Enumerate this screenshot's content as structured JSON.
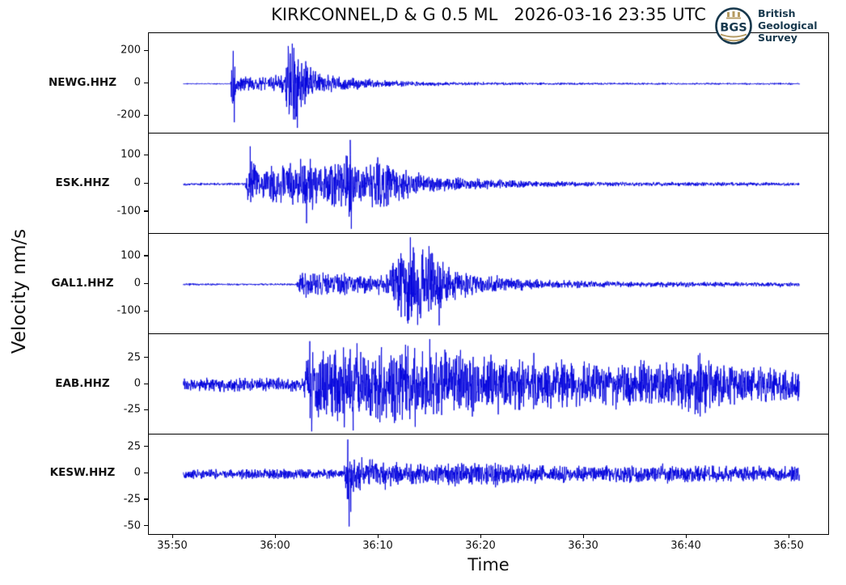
{
  "title": "KIRKCONNEL,D & G 0.5 ML   2026-03-16 23:35 UTC",
  "xlabel": "Time",
  "ylabel": "Velocity nm/s",
  "logo": {
    "abbr": "BGS",
    "line1": "British",
    "line2": "Geological",
    "line3": "Survey",
    "navy": "#17384d",
    "gold": "#b49a62"
  },
  "trace_color": "#0000dd",
  "chart_data": {
    "type": "line",
    "subtype": "seismogram-multipanel",
    "title": "KIRKCONNEL,D & G 0.5 ML   2026-03-16 23:35 UTC",
    "xlabel": "Time",
    "ylabel": "Velocity nm/s",
    "grid": false,
    "legend": false,
    "x_tick_labels": [
      "35:50",
      "36:00",
      "36:10",
      "36:20",
      "36:30",
      "36:40",
      "36:50"
    ],
    "x_tick_seconds": [
      0,
      10,
      20,
      30,
      40,
      50,
      60
    ],
    "trace_span_seconds": [
      1,
      61
    ],
    "stations": [
      {
        "label": "NEWG.HHZ",
        "y_ticks": [
          200,
          0,
          -200
        ],
        "ylim": [
          -310,
          310
        ],
        "peak": 250,
        "seed": 11,
        "envelope": [
          [
            0,
            4
          ],
          [
            5.6,
            4
          ],
          [
            5.8,
            200
          ],
          [
            6.3,
            55
          ],
          [
            8,
            42
          ],
          [
            9.5,
            48
          ],
          [
            10.8,
            85
          ],
          [
            11.3,
            250
          ],
          [
            12.4,
            215
          ],
          [
            13.5,
            95
          ],
          [
            15,
            58
          ],
          [
            18,
            36
          ],
          [
            22,
            19
          ],
          [
            28,
            11
          ],
          [
            36,
            8
          ],
          [
            50,
            6
          ],
          [
            61,
            6
          ]
        ],
        "spikes": [
          [
            5.85,
            205
          ],
          [
            5.95,
            -240
          ],
          [
            11.2,
            235
          ],
          [
            11.6,
            250
          ],
          [
            12.1,
            -275
          ]
        ]
      },
      {
        "label": "ESK.HHZ",
        "y_ticks": [
          100,
          0,
          -100
        ],
        "ylim": [
          -178,
          178
        ],
        "peak": 160,
        "seed": 22,
        "envelope": [
          [
            0,
            5
          ],
          [
            7,
            5
          ],
          [
            7.5,
            130
          ],
          [
            8.2,
            48
          ],
          [
            9,
            58
          ],
          [
            10,
            72
          ],
          [
            12,
            82
          ],
          [
            13.5,
            110
          ],
          [
            14.5,
            72
          ],
          [
            16,
            92
          ],
          [
            17.2,
            155
          ],
          [
            17.6,
            65
          ],
          [
            19,
            82
          ],
          [
            20.5,
            108
          ],
          [
            21.5,
            62
          ],
          [
            23,
            52
          ],
          [
            26,
            32
          ],
          [
            30,
            19
          ],
          [
            36,
            11
          ],
          [
            45,
            8
          ],
          [
            61,
            7
          ]
        ],
        "spikes": [
          [
            7.5,
            135
          ],
          [
            13.0,
            -140
          ],
          [
            17.25,
            158
          ],
          [
            17.35,
            -160
          ]
        ]
      },
      {
        "label": "GAL1.HHZ",
        "y_ticks": [
          100,
          0,
          -100
        ],
        "ylim": [
          -182,
          182
        ],
        "peak": 170,
        "seed": 33,
        "envelope": [
          [
            0,
            4
          ],
          [
            12,
            4
          ],
          [
            12.6,
            62
          ],
          [
            13.5,
            42
          ],
          [
            15,
            46
          ],
          [
            17,
            40
          ],
          [
            19,
            35
          ],
          [
            21,
            50
          ],
          [
            22,
            118
          ],
          [
            23.2,
            168
          ],
          [
            24.5,
            128
          ],
          [
            25.5,
            140
          ],
          [
            26.5,
            82
          ],
          [
            28,
            52
          ],
          [
            31,
            32
          ],
          [
            35,
            20
          ],
          [
            42,
            12
          ],
          [
            61,
            8
          ]
        ],
        "spikes": [
          [
            23.1,
            172
          ],
          [
            23.8,
            -148
          ],
          [
            24.9,
            140
          ],
          [
            25.9,
            -150
          ]
        ]
      },
      {
        "label": "EAB.HHZ",
        "y_ticks": [
          25,
          0,
          -25
        ],
        "ylim": [
          -48,
          48
        ],
        "peak": 45,
        "seed": 44,
        "envelope": [
          [
            0,
            7
          ],
          [
            12.7,
            7
          ],
          [
            13.2,
            44
          ],
          [
            14.5,
            30
          ],
          [
            16,
            40
          ],
          [
            18,
            34
          ],
          [
            20,
            42
          ],
          [
            22,
            37
          ],
          [
            24,
            40
          ],
          [
            26,
            31
          ],
          [
            28,
            35
          ],
          [
            30,
            28
          ],
          [
            32,
            30
          ],
          [
            35,
            25
          ],
          [
            38,
            26
          ],
          [
            41,
            22
          ],
          [
            44,
            24
          ],
          [
            47,
            20
          ],
          [
            50,
            28
          ],
          [
            51.5,
            32
          ],
          [
            53,
            22
          ],
          [
            56,
            18
          ],
          [
            61,
            16
          ]
        ],
        "spikes": [
          [
            13.3,
            42
          ],
          [
            13.5,
            -45
          ],
          [
            17.9,
            40
          ],
          [
            25.0,
            44
          ]
        ]
      },
      {
        "label": "KESW.HHZ",
        "y_ticks": [
          25,
          0,
          -25,
          -50
        ],
        "ylim": [
          -58,
          37
        ],
        "peak": 33,
        "seed": 55,
        "envelope": [
          [
            0,
            5
          ],
          [
            16.6,
            5
          ],
          [
            17,
            30
          ],
          [
            18,
            18
          ],
          [
            19,
            15
          ],
          [
            21,
            12
          ],
          [
            23,
            11
          ],
          [
            25,
            10
          ],
          [
            27,
            12
          ],
          [
            29,
            10
          ],
          [
            30.5,
            15
          ],
          [
            32,
            11
          ],
          [
            36,
            9
          ],
          [
            40,
            8
          ],
          [
            45,
            8
          ],
          [
            50,
            9
          ],
          [
            55,
            8
          ],
          [
            61,
            8
          ]
        ],
        "spikes": [
          [
            17.0,
            33
          ],
          [
            17.15,
            -50
          ],
          [
            17.3,
            -36
          ]
        ]
      }
    ]
  }
}
